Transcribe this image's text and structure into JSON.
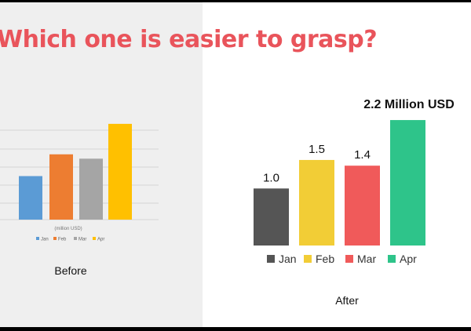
{
  "title": "Which one is easier to grasp?",
  "captions": {
    "before": "Before",
    "after": "After"
  },
  "colors": {
    "title": "#e9545b",
    "before_series": [
      "#5b9bd5",
      "#ed7d31",
      "#a5a5a5",
      "#ffc000"
    ],
    "after_series": [
      "#555555",
      "#f2cd36",
      "#f05a5a",
      "#2ec48a"
    ]
  },
  "chart_data": [
    {
      "type": "bar",
      "panel": "before",
      "categories": [
        "Jan",
        "Feb",
        "Mar",
        "Apr"
      ],
      "values": [
        1.0,
        1.5,
        1.4,
        2.2
      ],
      "xlabel": "(million USD)",
      "legend": [
        "Jan",
        "Feb",
        "Mar",
        "Apr"
      ],
      "legend_position": "bottom",
      "grid": true
    },
    {
      "type": "bar",
      "panel": "after",
      "categories": [
        "Jan",
        "Feb",
        "Mar",
        "Apr"
      ],
      "values": [
        1.0,
        1.5,
        1.4,
        2.2
      ],
      "data_labels": [
        "1.0",
        "1.5",
        "1.4",
        "2.2 Million USD"
      ],
      "legend": [
        "Jan",
        "Feb",
        "Mar",
        "Apr"
      ],
      "legend_position": "bottom",
      "grid": false
    }
  ]
}
